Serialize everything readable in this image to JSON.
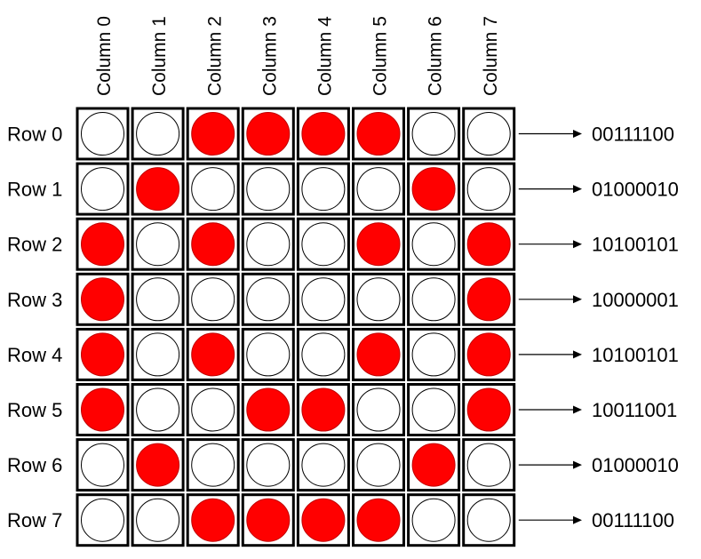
{
  "colors": {
    "on": "#ff0000",
    "off": "#ffffff",
    "cell_border": "#000000",
    "arrow": "#000000"
  },
  "column_labels": [
    "Column 0",
    "Column 1",
    "Column 2",
    "Column 3",
    "Column 4",
    "Column 5",
    "Column 6",
    "Column 7"
  ],
  "rows": [
    {
      "label": "Row 0",
      "code": "00111100"
    },
    {
      "label": "Row 1",
      "code": "01000010"
    },
    {
      "label": "Row 2",
      "code": "10100101"
    },
    {
      "label": "Row 3",
      "code": "10000001"
    },
    {
      "label": "Row 4",
      "code": "10100101"
    },
    {
      "label": "Row 5",
      "code": "10011001"
    },
    {
      "label": "Row 6",
      "code": "01000010"
    },
    {
      "label": "Row 7",
      "code": "00111100"
    }
  ]
}
